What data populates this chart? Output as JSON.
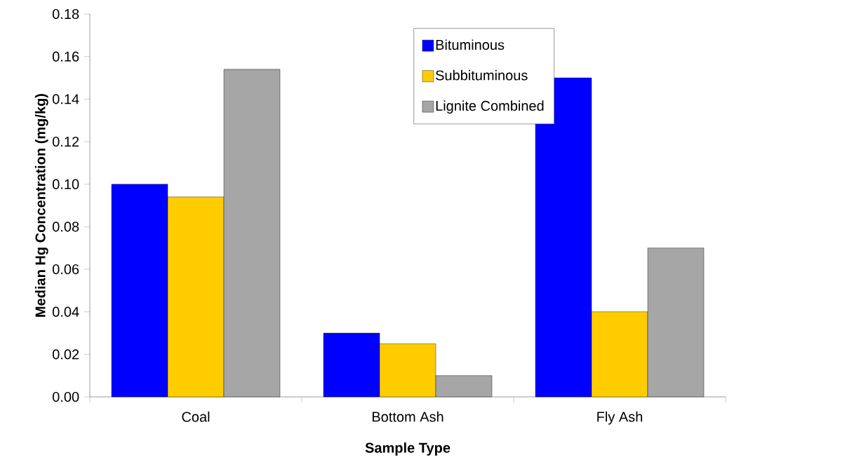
{
  "chart_data": {
    "type": "bar",
    "xlabel": "Sample Type",
    "ylabel": "Median Hg Concentration (mg/kg)",
    "categories": [
      "Coal",
      "Bottom Ash",
      "Fly Ash"
    ],
    "series": [
      {
        "name": "Bituminous",
        "color": "#0000ff",
        "values": [
          0.1,
          0.03,
          0.15
        ]
      },
      {
        "name": "Subbituminous",
        "color": "#ffcc00",
        "values": [
          0.094,
          0.025,
          0.04
        ]
      },
      {
        "name": "Lignite Combined",
        "color": "#a6a6a6",
        "values": [
          0.154,
          0.01,
          0.07
        ]
      }
    ],
    "ylim": [
      0,
      0.18
    ],
    "yticks": [
      {
        "value": 0,
        "label": "0.00"
      },
      {
        "value": 0.02,
        "label": "0.02"
      },
      {
        "value": 0.04,
        "label": "0.04"
      },
      {
        "value": 0.06,
        "label": "0.06"
      },
      {
        "value": 0.08,
        "label": "0.08"
      },
      {
        "value": 0.1,
        "label": "0.10"
      },
      {
        "value": 0.12,
        "label": "0.12"
      },
      {
        "value": 0.14,
        "label": "0.14"
      },
      {
        "value": 0.16,
        "label": "0.16"
      },
      {
        "value": 0.18,
        "label": "0.18"
      }
    ],
    "legend": "top"
  }
}
